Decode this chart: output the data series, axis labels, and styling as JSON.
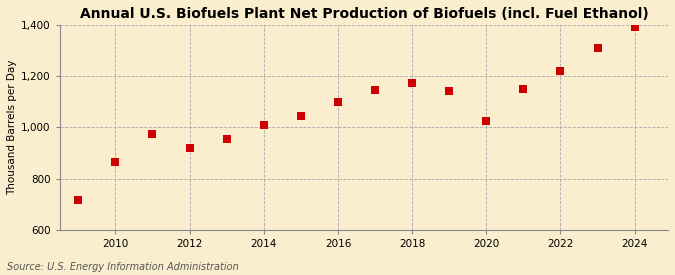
{
  "title": "Annual U.S. Biofuels Plant Net Production of Biofuels (incl. Fuel Ethanol)",
  "ylabel": "Thousand Barrels per Day",
  "source": "Source: U.S. Energy Information Administration",
  "years": [
    2009,
    2010,
    2011,
    2012,
    2013,
    2014,
    2015,
    2016,
    2017,
    2018,
    2019,
    2020,
    2021,
    2022,
    2023,
    2024
  ],
  "values": [
    715,
    865,
    975,
    920,
    955,
    1010,
    1045,
    1100,
    1145,
    1175,
    1140,
    1025,
    1150,
    1220,
    1310,
    1390
  ],
  "marker_color": "#cc0000",
  "marker": "s",
  "marker_size": 28,
  "ylim": [
    600,
    1400
  ],
  "yticks": [
    600,
    800,
    1000,
    1200,
    1400
  ],
  "xlim": [
    2008.5,
    2024.9
  ],
  "xticks": [
    2010,
    2012,
    2014,
    2016,
    2018,
    2020,
    2022,
    2024
  ],
  "background_color": "#faeece",
  "grid_color": "#aaaaaa",
  "title_fontsize": 10,
  "label_fontsize": 7.5,
  "tick_fontsize": 7.5,
  "source_fontsize": 7
}
